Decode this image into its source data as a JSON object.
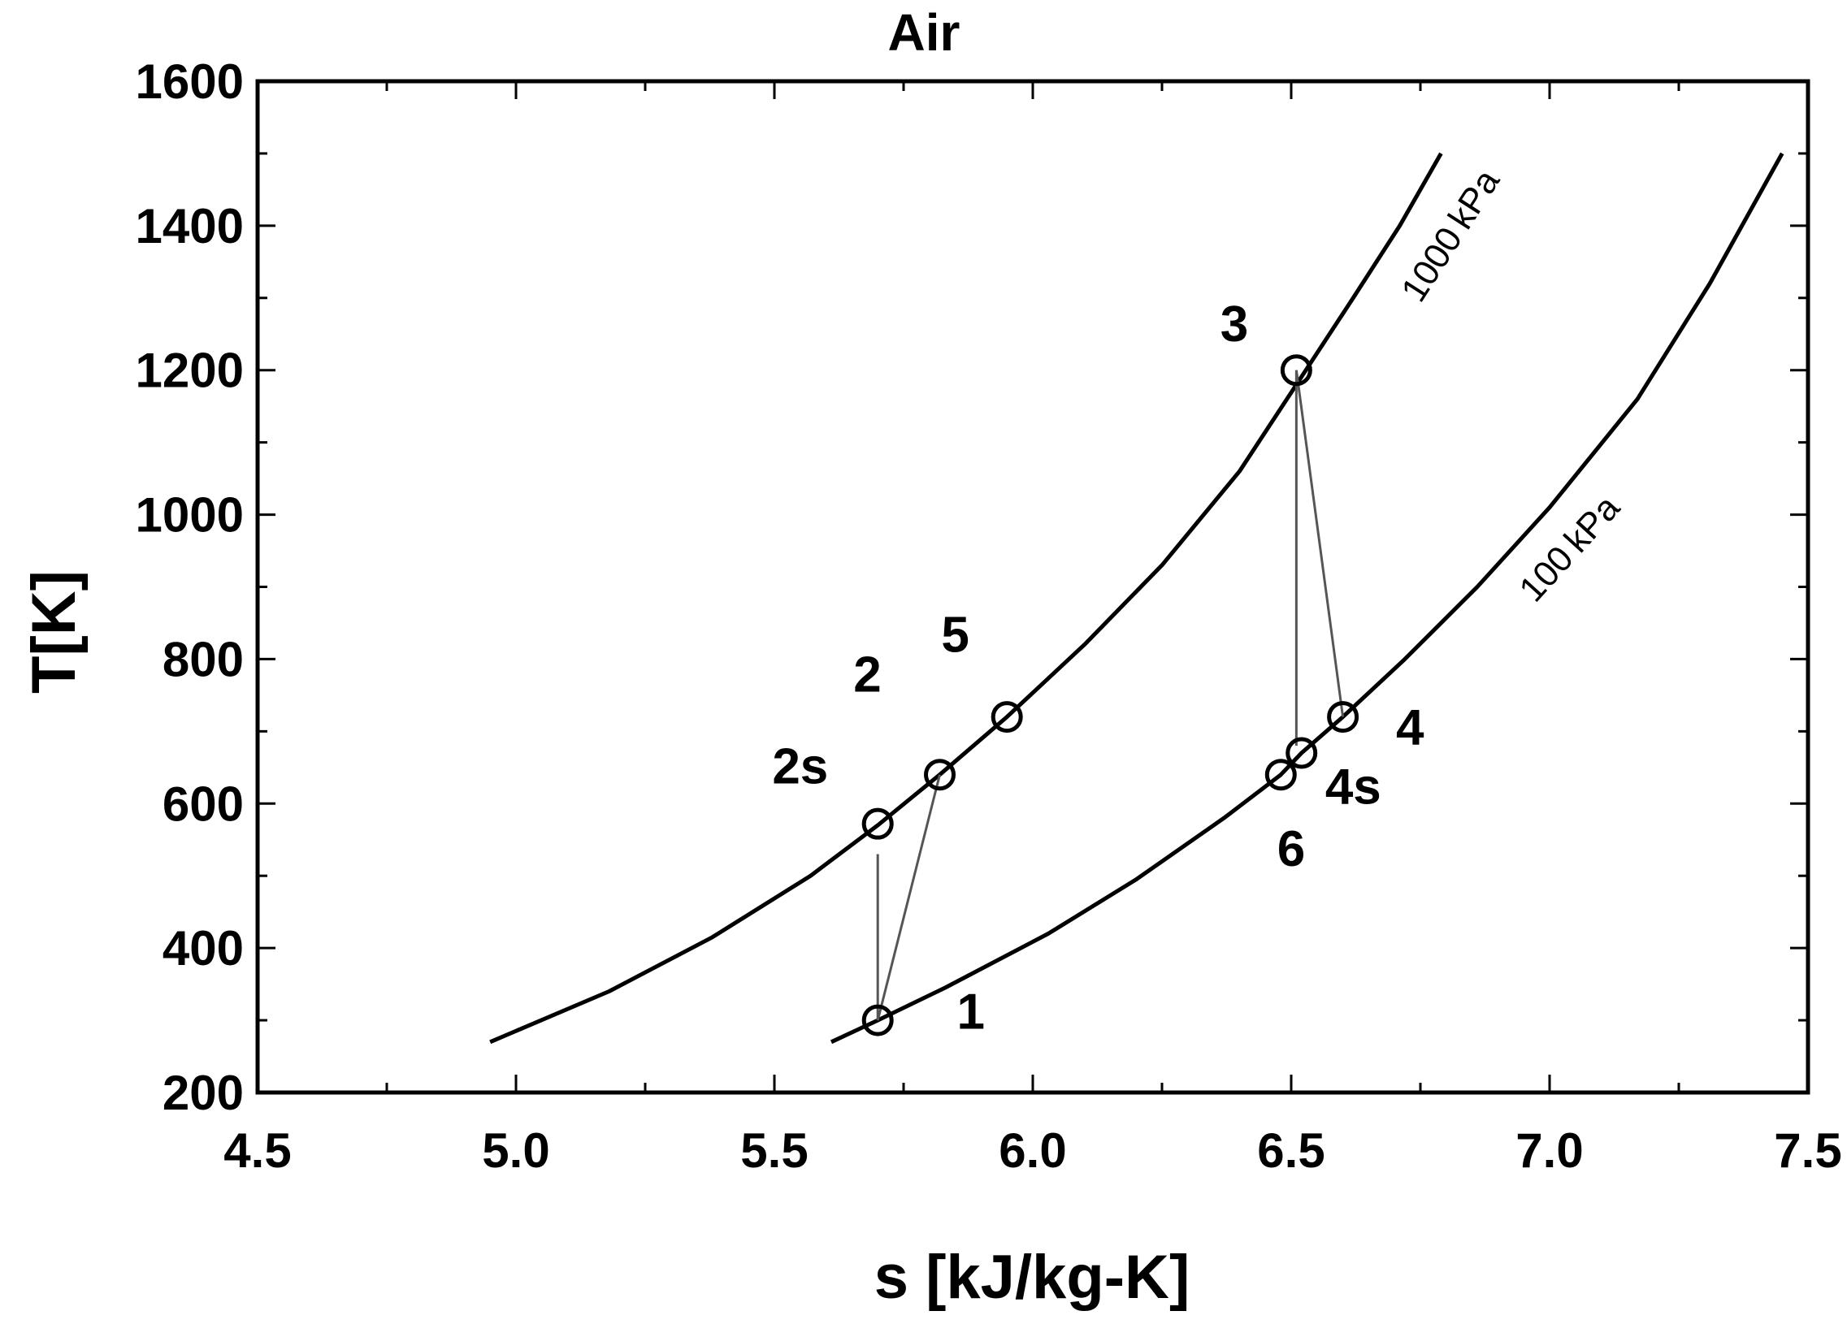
{
  "chart_data": {
    "type": "line",
    "title": "Air",
    "xlabel": "s [kJ/kg-K]",
    "ylabel": "T[K]",
    "xlim": [
      4.5,
      7.5
    ],
    "ylim": [
      200,
      1600
    ],
    "x_ticks": [
      4.5,
      5.0,
      5.5,
      6.0,
      6.5,
      7.0,
      7.5
    ],
    "x_tick_labels": [
      "4.5",
      "5.0",
      "5.5",
      "6.0",
      "6.5",
      "7.0",
      "7.5"
    ],
    "y_ticks": [
      200,
      400,
      600,
      800,
      1000,
      1200,
      1400,
      1600
    ],
    "y_tick_labels": [
      "200",
      "400",
      "600",
      "800",
      "1000",
      "1200",
      "1400",
      "1600"
    ],
    "x_minor_step": 0.25,
    "y_minor_step": 100,
    "grid": false,
    "series": [
      {
        "name": "1000 kPa",
        "label_at": {
          "x": 6.71,
          "y": 1280
        },
        "points": [
          [
            4.95,
            270
          ],
          [
            5.18,
            340
          ],
          [
            5.38,
            415
          ],
          [
            5.57,
            500
          ],
          [
            5.7,
            570
          ],
          [
            5.82,
            640
          ],
          [
            5.95,
            720
          ],
          [
            6.1,
            820
          ],
          [
            6.25,
            930
          ],
          [
            6.4,
            1060
          ],
          [
            6.51,
            1180
          ],
          [
            6.62,
            1300
          ],
          [
            6.71,
            1400
          ],
          [
            6.79,
            1500
          ]
        ]
      },
      {
        "name": "100 kPa",
        "label_at": {
          "x": 6.93,
          "y": 870
        },
        "points": [
          [
            5.61,
            270
          ],
          [
            5.7,
            300
          ],
          [
            5.83,
            345
          ],
          [
            6.03,
            420
          ],
          [
            6.2,
            495
          ],
          [
            6.37,
            580
          ],
          [
            6.48,
            640
          ],
          [
            6.52,
            670
          ],
          [
            6.6,
            720
          ],
          [
            6.72,
            800
          ],
          [
            6.86,
            900
          ],
          [
            7.0,
            1010
          ],
          [
            7.17,
            1160
          ],
          [
            7.31,
            1320
          ],
          [
            7.45,
            1500
          ]
        ]
      }
    ],
    "state_points": [
      {
        "label": "1",
        "x": 5.7,
        "y": 300,
        "label_x": 5.88,
        "label_y": 288
      },
      {
        "label": "2s",
        "x": 5.7,
        "y": 572,
        "label_x": 5.55,
        "label_y": 628
      },
      {
        "label": "2",
        "x": 5.82,
        "y": 640,
        "label_x": 5.68,
        "label_y": 755
      },
      {
        "label": "5",
        "x": 5.95,
        "y": 720,
        "label_x": 5.85,
        "label_y": 810
      },
      {
        "label": "3",
        "x": 6.51,
        "y": 1200,
        "label_x": 6.39,
        "label_y": 1240
      },
      {
        "label": "4",
        "x": 6.6,
        "y": 720,
        "label_x": 6.73,
        "label_y": 682
      },
      {
        "label": "4s",
        "x": 6.52,
        "y": 670,
        "label_x": 6.62,
        "label_y": 600
      },
      {
        "label": "6",
        "x": 6.48,
        "y": 640,
        "label_x": 6.5,
        "label_y": 514
      }
    ],
    "process_lines": [
      {
        "from": [
          5.7,
          300
        ],
        "to": [
          5.7,
          530
        ]
      },
      {
        "from": [
          5.7,
          300
        ],
        "to": [
          5.82,
          640
        ]
      },
      {
        "from": [
          6.51,
          1200
        ],
        "to": [
          6.51,
          680
        ]
      },
      {
        "from": [
          6.51,
          1200
        ],
        "to": [
          6.6,
          720
        ]
      }
    ]
  }
}
